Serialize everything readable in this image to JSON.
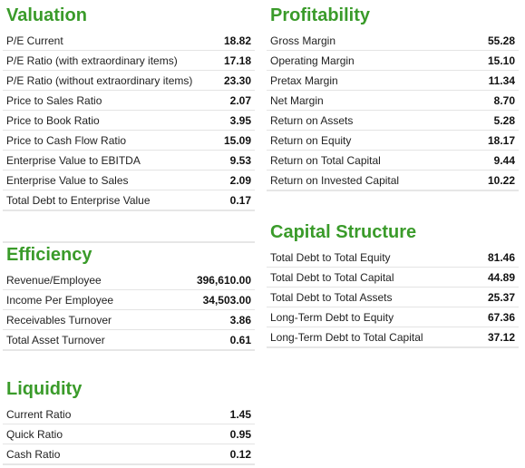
{
  "valuation": {
    "title": "Valuation",
    "rows": [
      {
        "label": "P/E Current",
        "value": "18.82"
      },
      {
        "label": "P/E Ratio (with extraordinary items)",
        "value": "17.18"
      },
      {
        "label": "P/E Ratio (without extraordinary items)",
        "value": "23.30"
      },
      {
        "label": "Price to Sales Ratio",
        "value": "2.07"
      },
      {
        "label": "Price to Book Ratio",
        "value": "3.95"
      },
      {
        "label": "Price to Cash Flow Ratio",
        "value": "15.09"
      },
      {
        "label": "Enterprise Value to EBITDA",
        "value": "9.53"
      },
      {
        "label": "Enterprise Value to Sales",
        "value": "2.09"
      },
      {
        "label": "Total Debt to Enterprise Value",
        "value": "0.17"
      }
    ]
  },
  "profitability": {
    "title": "Profitability",
    "rows": [
      {
        "label": "Gross Margin",
        "value": "55.28"
      },
      {
        "label": "Operating Margin",
        "value": "15.10"
      },
      {
        "label": "Pretax Margin",
        "value": "11.34"
      },
      {
        "label": "Net Margin",
        "value": "8.70"
      },
      {
        "label": "Return on Assets",
        "value": "5.28"
      },
      {
        "label": "Return on Equity",
        "value": "18.17"
      },
      {
        "label": "Return on Total Capital",
        "value": "9.44"
      },
      {
        "label": "Return on Invested Capital",
        "value": "10.22"
      }
    ]
  },
  "efficiency": {
    "title": "Efficiency",
    "rows": [
      {
        "label": "Revenue/Employee",
        "value": "396,610.00"
      },
      {
        "label": "Income Per Employee",
        "value": "34,503.00"
      },
      {
        "label": "Receivables Turnover",
        "value": "3.86"
      },
      {
        "label": "Total Asset Turnover",
        "value": "0.61"
      }
    ]
  },
  "capital_structure": {
    "title": "Capital Structure",
    "rows": [
      {
        "label": "Total Debt to Total Equity",
        "value": "81.46"
      },
      {
        "label": "Total Debt to Total Capital",
        "value": "44.89"
      },
      {
        "label": "Total Debt to Total Assets",
        "value": "25.37"
      },
      {
        "label": "Long-Term Debt to Equity",
        "value": "67.36"
      },
      {
        "label": "Long-Term Debt to Total Capital",
        "value": "37.12"
      }
    ]
  },
  "liquidity": {
    "title": "Liquidity",
    "rows": [
      {
        "label": "Current Ratio",
        "value": "1.45"
      },
      {
        "label": "Quick Ratio",
        "value": "0.95"
      },
      {
        "label": "Cash Ratio",
        "value": "0.12"
      }
    ]
  }
}
